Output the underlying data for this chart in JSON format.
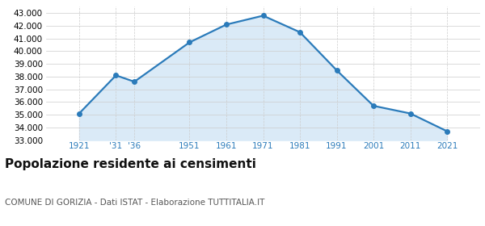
{
  "years": [
    1921,
    1931,
    1936,
    1951,
    1961,
    1971,
    1981,
    1991,
    2001,
    2011,
    2021
  ],
  "x_labels": [
    "1921",
    "'31",
    "'36",
    "1951",
    "1961",
    "1971",
    "1981",
    "1991",
    "2001",
    "2011",
    "2021"
  ],
  "population": [
    35100,
    38100,
    37600,
    40700,
    42100,
    42800,
    41500,
    38500,
    35700,
    35100,
    33700
  ],
  "line_color": "#2b7bba",
  "fill_color": "#daeaf7",
  "marker_color": "#2b7bba",
  "grid_color": "#cccccc",
  "background_color": "#ffffff",
  "title": "Popolazione residente ai censimenti",
  "subtitle": "COMUNE DI GORIZIA - Dati ISTAT - Elaborazione TUTTITALIA.IT",
  "ylim": [
    33000,
    43500
  ],
  "yticks": [
    33000,
    34000,
    35000,
    36000,
    37000,
    38000,
    39000,
    40000,
    41000,
    42000,
    43000
  ],
  "title_fontsize": 11,
  "subtitle_fontsize": 7.5,
  "tick_fontsize": 7.5
}
